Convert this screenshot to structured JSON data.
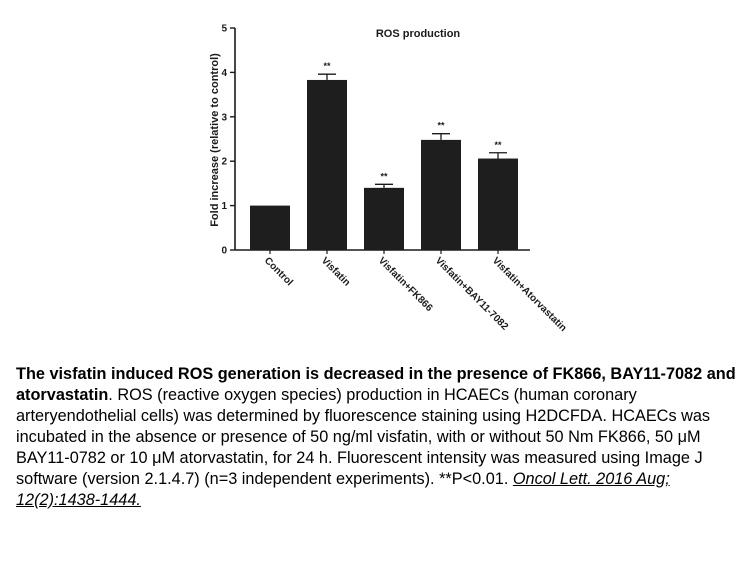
{
  "chart_data": {
    "type": "bar",
    "title": "ROS production",
    "xlabel": "",
    "ylabel": "Fold increase (relative to control)",
    "ylim": [
      0,
      5
    ],
    "yticks": [
      "0",
      "1",
      "2",
      "3",
      "4",
      "5"
    ],
    "categories": [
      "Control",
      "Visfatin",
      "Visfatin+FK866",
      "Visfatin+BAY11-7082",
      "Visfatin+Atorvastatin"
    ],
    "values": [
      1.0,
      3.83,
      1.4,
      2.48,
      2.06
    ],
    "errors": [
      0.01,
      0.13,
      0.08,
      0.14,
      0.13
    ],
    "significance": [
      "",
      "**",
      "**",
      "**",
      "**"
    ],
    "bar_color": "#1e1e1e",
    "grid": false,
    "legend": "none"
  },
  "caption": {
    "bold_lead": "The visfatin induced ROS generation is decreased in the presence of FK866, BAY11-7082 and atorvastatin",
    "body": ". ROS (reactive oxygen species) production in HCAECs (human coronary arteryendothelial cells) was determined by fluorescence staining using H2DCFDA. HCAECs was incubated in the absence or presence of 50 ng/ml visfatin, with or without 50 Nm FK866, 50 μM BAY11-0782 or 10 μM atorvastatin, for 24 h. Fluorescent intensity was measured using Image J software (version 2.1.4.7) (n=3 independent experiments). **P<0.01. ",
    "citation": "Oncol Lett. 2016 Aug; 12(2):1438-1444."
  }
}
